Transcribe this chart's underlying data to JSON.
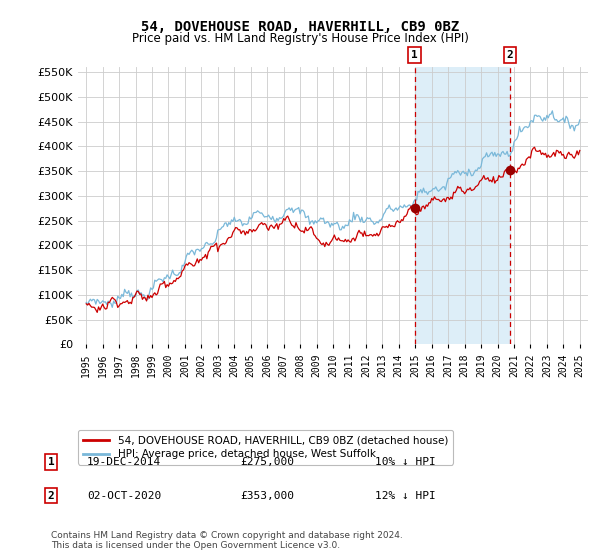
{
  "title": "54, DOVEHOUSE ROAD, HAVERHILL, CB9 0BZ",
  "subtitle": "Price paid vs. HM Land Registry's House Price Index (HPI)",
  "legend_line1": "54, DOVEHOUSE ROAD, HAVERHILL, CB9 0BZ (detached house)",
  "legend_line2": "HPI: Average price, detached house, West Suffolk",
  "annotation1_label": "1",
  "annotation1_date": "19-DEC-2014",
  "annotation1_price": "£275,000",
  "annotation1_hpi": "10% ↓ HPI",
  "annotation2_label": "2",
  "annotation2_date": "02-OCT-2020",
  "annotation2_price": "£353,000",
  "annotation2_hpi": "12% ↓ HPI",
  "footer": "Contains HM Land Registry data © Crown copyright and database right 2024.\nThis data is licensed under the Open Government Licence v3.0.",
  "hpi_color": "#7ab8d9",
  "price_color": "#cc0000",
  "marker_color": "#990000",
  "vline_color": "#cc0000",
  "shade_color": "#ddeef8",
  "ylim": [
    0,
    560000
  ],
  "yticks": [
    0,
    50000,
    100000,
    150000,
    200000,
    250000,
    300000,
    350000,
    400000,
    450000,
    500000,
    550000
  ],
  "xlim_start": 1994.5,
  "xlim_end": 2025.5,
  "point1_x": 2014.96,
  "point1_y": 275000,
  "point2_x": 2020.75,
  "point2_y": 353000,
  "background_color": "#ffffff",
  "grid_color": "#cccccc"
}
